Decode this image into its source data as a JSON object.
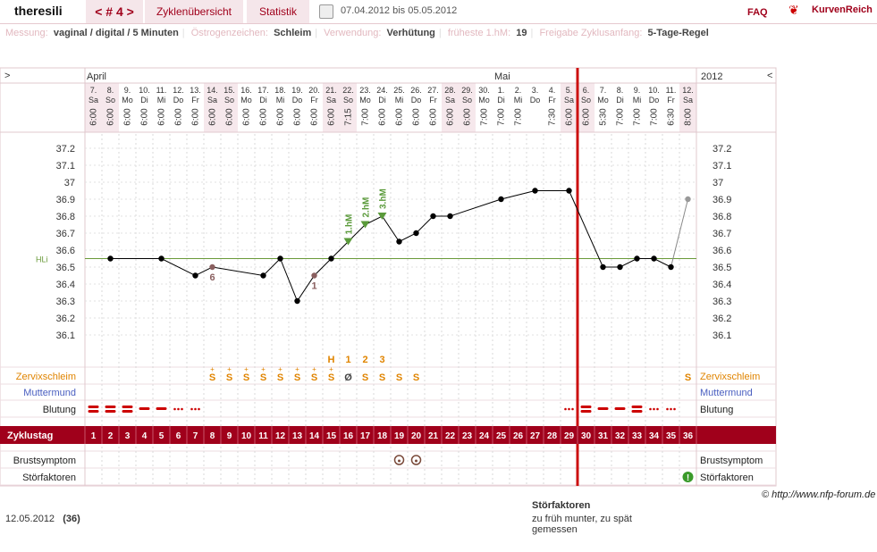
{
  "header": {
    "user": "theresili",
    "cycle_tab": "< # 4 >",
    "tabs": [
      "Zyklenübersicht",
      "Statistik"
    ],
    "period": "07.04.2012 bis 05.05.2012",
    "faq": "FAQ",
    "logo": "KurvenReich",
    "icons": {
      "print": "printer-icon",
      "logo": "heart-logo-icon"
    }
  },
  "meta": [
    {
      "key": "Messung:",
      "value": "vaginal / digital / 5 Minuten"
    },
    {
      "key": "Östrogenzeichen:",
      "value": "Schleim"
    },
    {
      "key": "Verwendung:",
      "value": "Verhütung"
    },
    {
      "key": "früheste 1.hM:",
      "value": "19"
    },
    {
      "key": "Freigabe Zyklusanfang:",
      "value": "5-Tage-Regel"
    }
  ],
  "chart_data": {
    "type": "line",
    "nav": {
      "left": ">",
      "right": "<"
    },
    "months": [
      {
        "label": "April",
        "start_day": 1
      },
      {
        "label": "Mai",
        "start_day": 25
      }
    ],
    "year": "2012",
    "dates": [
      "7.",
      "8.",
      "9.",
      "10.",
      "11.",
      "12.",
      "13.",
      "14.",
      "15.",
      "16.",
      "17.",
      "18.",
      "19.",
      "20.",
      "21.",
      "22.",
      "23.",
      "24.",
      "25.",
      "26.",
      "27.",
      "28.",
      "29.",
      "30.",
      "1.",
      "2.",
      "3.",
      "4.",
      "5.",
      "6.",
      "7.",
      "8.",
      "9.",
      "10.",
      "11.",
      "12."
    ],
    "weekdays": [
      "Sa",
      "So",
      "Mo",
      "Di",
      "Mi",
      "Do",
      "Fr",
      "Sa",
      "So",
      "Mo",
      "Di",
      "Mi",
      "Do",
      "Fr",
      "Sa",
      "So",
      "Mo",
      "Di",
      "Mi",
      "Do",
      "Fr",
      "Sa",
      "So",
      "Mo",
      "Di",
      "Mi",
      "Do",
      "Fr",
      "Sa",
      "So",
      "Mo",
      "Di",
      "Mi",
      "Do",
      "Fr",
      "Sa"
    ],
    "times": [
      "6:00",
      "6:00",
      "6:00",
      "6:00",
      "6:00",
      "6:00",
      "6:00",
      "6:00",
      "6:00",
      "6:00",
      "6:00",
      "6:00",
      "6:00",
      "6:00",
      "6:00",
      "7:15",
      "7:00",
      "6:00",
      "6:00",
      "6:00",
      "6:00",
      "6:00",
      "6:00",
      "7:00",
      "7:00",
      "7:00",
      "",
      "7:30",
      "6:00",
      "6:00",
      "5:30",
      "7:00",
      "7:00",
      "7:00",
      "6:30",
      "8:00"
    ],
    "y_ticks": [
      "37.2",
      "37.1",
      "37",
      "36.9",
      "36.8",
      "36.7",
      "36.6",
      "36.5",
      "36.4",
      "36.3",
      "36.2",
      "36.1"
    ],
    "ylim": [
      36.0,
      37.28
    ],
    "temperatures": [
      null,
      36.55,
      null,
      null,
      36.55,
      null,
      36.45,
      36.5,
      null,
      null,
      36.45,
      36.55,
      36.3,
      36.45,
      36.55,
      36.65,
      36.75,
      36.8,
      36.65,
      36.7,
      36.8,
      36.8,
      null,
      null,
      36.9,
      null,
      36.95,
      null,
      36.95,
      null,
      36.5,
      36.5,
      36.55,
      36.55,
      36.5,
      36.9
    ],
    "hli": {
      "label": "HLi",
      "value": 36.55
    },
    "markers": [
      {
        "day": 16,
        "label": "1.hM"
      },
      {
        "day": 17,
        "label": "2.hM"
      },
      {
        "day": 18,
        "label": "3.hM"
      }
    ],
    "counts": [
      {
        "day": 8,
        "label": "6"
      },
      {
        "day": 14,
        "label": "1"
      }
    ],
    "cycle_boundary_day": 29,
    "top_row": [
      {
        "day": 15,
        "label": "H"
      },
      {
        "day": 16,
        "label": "1"
      },
      {
        "day": 17,
        "label": "2"
      },
      {
        "day": 18,
        "label": "3"
      }
    ],
    "mucus_row_label": "Zervixschleim",
    "mucus": [
      {
        "day": 8,
        "label": "S",
        "plus": "+"
      },
      {
        "day": 9,
        "label": "S",
        "plus": "+"
      },
      {
        "day": 10,
        "label": "S",
        "plus": "+"
      },
      {
        "day": 11,
        "label": "S",
        "plus": "+"
      },
      {
        "day": 12,
        "label": "S",
        "plus": "+"
      },
      {
        "day": 13,
        "label": "S",
        "plus": "+"
      },
      {
        "day": 14,
        "label": "S",
        "plus": "+"
      },
      {
        "day": 15,
        "label": "S",
        "plus": "+"
      },
      {
        "day": 16,
        "label": "Ø",
        "plus": ""
      },
      {
        "day": 17,
        "label": "S",
        "plus": ""
      },
      {
        "day": 18,
        "label": "S",
        "plus": ""
      },
      {
        "day": 19,
        "label": "S",
        "plus": ""
      },
      {
        "day": 20,
        "label": "S",
        "plus": ""
      },
      {
        "day": 36,
        "label": "S",
        "plus": ""
      }
    ],
    "cervix_row_label": "Muttermund",
    "bleeding_row_label": "Blutung",
    "bleeding": [
      {
        "day": 1,
        "type": "heavy"
      },
      {
        "day": 2,
        "type": "heavy"
      },
      {
        "day": 3,
        "type": "heavy"
      },
      {
        "day": 4,
        "type": "normal"
      },
      {
        "day": 5,
        "type": "normal"
      },
      {
        "day": 6,
        "type": "spot"
      },
      {
        "day": 7,
        "type": "spot"
      },
      {
        "day": 29,
        "type": "spot"
      },
      {
        "day": 30,
        "type": "heavy"
      },
      {
        "day": 31,
        "type": "normal"
      },
      {
        "day": 32,
        "type": "normal"
      },
      {
        "day": 33,
        "type": "heavy"
      },
      {
        "day": 34,
        "type": "spot"
      },
      {
        "day": 35,
        "type": "spot"
      }
    ],
    "cycle_row_label": "Zyklustag",
    "cycle_days": [
      "1",
      "2",
      "3",
      "4",
      "5",
      "6",
      "7",
      "8",
      "9",
      "10",
      "11",
      "12",
      "13",
      "14",
      "15",
      "16",
      "17",
      "18",
      "19",
      "20",
      "21",
      "22",
      "23",
      "24",
      "25",
      "26",
      "27",
      "28",
      "29",
      "30",
      "31",
      "32",
      "33",
      "34",
      "35",
      "36"
    ],
    "breast_row_label": "Brustsymptom",
    "breast": [
      {
        "day": 19,
        "icon": "breast-symptom-icon"
      },
      {
        "day": 20,
        "icon": "breast-symptom-icon"
      }
    ],
    "disturbance_row_label": "Störfaktoren",
    "disturbance": [
      {
        "day": 36,
        "icon": "exclamation-icon"
      }
    ],
    "colors": {
      "line": "#000000",
      "hli": "#6a9a3a",
      "marker": "#5a9a3a",
      "boundary": "#cc1111",
      "cycle_bar": "#a0001b",
      "mucus": "#e08400",
      "cervix": "#4a5fc0",
      "weekend": "#f6e8ec",
      "blood": "#cc0000",
      "count": "#8a6060"
    }
  },
  "credit": "© http://www.nfp-forum.de",
  "footer": {
    "date": "12.05.2012",
    "days": "(36)",
    "disturbance_title": "Störfaktoren",
    "disturbance_text": "zu früh munter, zu spät gemessen"
  }
}
